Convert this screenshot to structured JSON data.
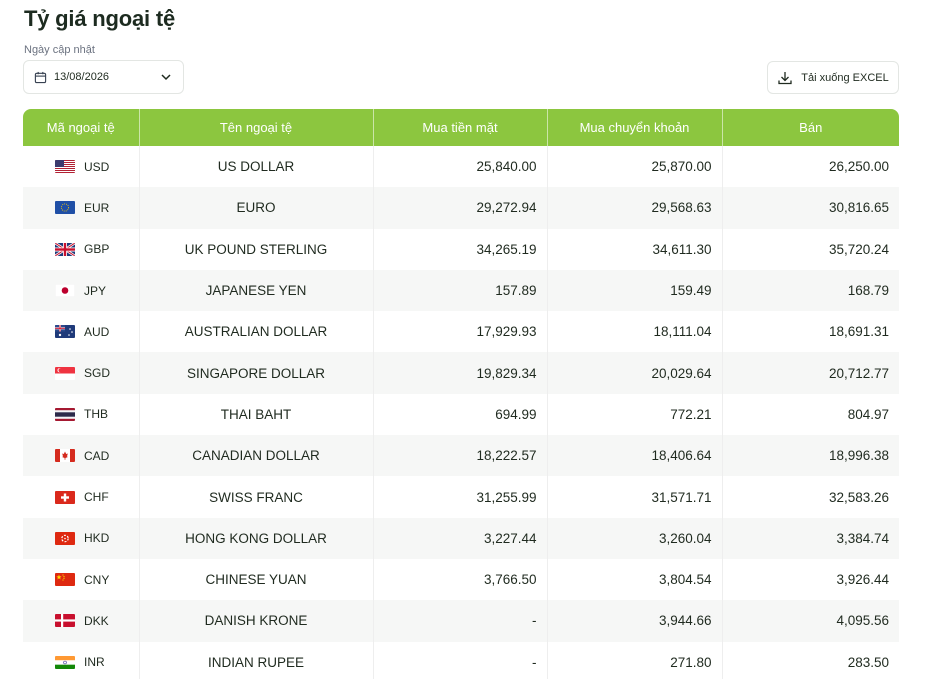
{
  "title": "Tỷ giá ngoại tệ",
  "date_filter": {
    "label": "Ngày cập nhật",
    "value": "13/08/2026"
  },
  "excel_button": {
    "label": "Tải xuống EXCEL"
  },
  "table": {
    "headers": [
      "Mã ngoại tệ",
      "Tên ngoại tệ",
      "Mua tiền mặt",
      "Mua chuyển khoản",
      "Bán"
    ],
    "rows": [
      {
        "flag": "us-flag-icon",
        "code": "USD",
        "name": "US DOLLAR",
        "cash": "25,840.00",
        "transfer": "25,870.00",
        "sell": "26,250.00"
      },
      {
        "flag": "eu-flag-icon",
        "code": "EUR",
        "name": "EURO",
        "cash": "29,272.94",
        "transfer": "29,568.63",
        "sell": "30,816.65"
      },
      {
        "flag": "uk-flag-icon",
        "code": "GBP",
        "name": "UK POUND STERLING",
        "cash": "34,265.19",
        "transfer": "34,611.30",
        "sell": "35,720.24"
      },
      {
        "flag": "jp-flag-icon",
        "code": "JPY",
        "name": "JAPANESE YEN",
        "cash": "157.89",
        "transfer": "159.49",
        "sell": "168.79"
      },
      {
        "flag": "au-flag-icon",
        "code": "AUD",
        "name": "AUSTRALIAN DOLLAR",
        "cash": "17,929.93",
        "transfer": "18,111.04",
        "sell": "18,691.31"
      },
      {
        "flag": "sg-flag-icon",
        "code": "SGD",
        "name": "SINGAPORE DOLLAR",
        "cash": "19,829.34",
        "transfer": "20,029.64",
        "sell": "20,712.77"
      },
      {
        "flag": "th-flag-icon",
        "code": "THB",
        "name": "THAI BAHT",
        "cash": "694.99",
        "transfer": "772.21",
        "sell": "804.97"
      },
      {
        "flag": "ca-flag-icon",
        "code": "CAD",
        "name": "CANADIAN DOLLAR",
        "cash": "18,222.57",
        "transfer": "18,406.64",
        "sell": "18,996.38"
      },
      {
        "flag": "ch-flag-icon",
        "code": "CHF",
        "name": "SWISS FRANC",
        "cash": "31,255.99",
        "transfer": "31,571.71",
        "sell": "32,583.26"
      },
      {
        "flag": "hk-flag-icon",
        "code": "HKD",
        "name": "HONG KONG DOLLAR",
        "cash": "3,227.44",
        "transfer": "3,260.04",
        "sell": "3,384.74"
      },
      {
        "flag": "cn-flag-icon",
        "code": "CNY",
        "name": "CHINESE YUAN",
        "cash": "3,766.50",
        "transfer": "3,804.54",
        "sell": "3,926.44"
      },
      {
        "flag": "dk-flag-icon",
        "code": "DKK",
        "name": "DANISH KRONE",
        "cash": "-",
        "transfer": "3,944.66",
        "sell": "4,095.56"
      },
      {
        "flag": "in-flag-icon",
        "code": "INR",
        "name": "INDIAN RUPEE",
        "cash": "-",
        "transfer": "271.80",
        "sell": "283.50"
      }
    ]
  },
  "colors": {
    "header_bg": "#8cc63f",
    "row_alt_bg": "#f6f7f6",
    "title": "#1d2b20"
  }
}
